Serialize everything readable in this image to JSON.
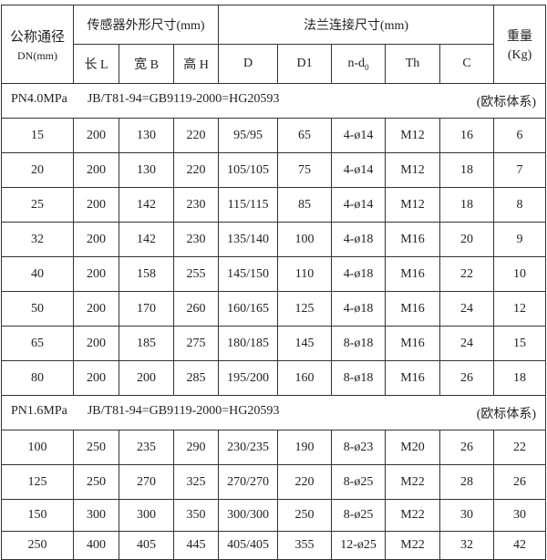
{
  "header": {
    "nominal_diameter": "公称通径",
    "nominal_diameter_unit": "DN(mm)",
    "sensor_dims": "传感器外形尺寸(mm)",
    "flange_dims": "法兰连接尺寸(mm)",
    "weight": "重量",
    "weight_unit": "(Kg)",
    "columns": [
      "长 L",
      "宽 B",
      "高 H",
      "D",
      "D1",
      "n-d",
      "Th",
      "C"
    ],
    "nd_subscript": "0"
  },
  "sections": [
    {
      "pressure": "PN4.0MPa",
      "standard": "JB/T81-94=GB9119-2000=HG20593",
      "system": "(欧标体系)",
      "rows": [
        [
          "15",
          "200",
          "130",
          "220",
          "95/95",
          "65",
          "4-ø14",
          "M12",
          "16",
          "6"
        ],
        [
          "20",
          "200",
          "130",
          "220",
          "105/105",
          "75",
          "4-ø14",
          "M12",
          "18",
          "7"
        ],
        [
          "25",
          "200",
          "142",
          "230",
          "115/115",
          "85",
          "4-ø14",
          "M12",
          "18",
          "8"
        ],
        [
          "32",
          "200",
          "142",
          "230",
          "135/140",
          "100",
          "4-ø18",
          "M16",
          "20",
          "9"
        ],
        [
          "40",
          "200",
          "158",
          "255",
          "145/150",
          "110",
          "4-ø18",
          "M16",
          "22",
          "10"
        ],
        [
          "50",
          "200",
          "170",
          "260",
          "160/165",
          "125",
          "4-ø18",
          "M16",
          "24",
          "12"
        ],
        [
          "65",
          "200",
          "185",
          "275",
          "180/185",
          "145",
          "8-ø18",
          "M16",
          "24",
          "15"
        ],
        [
          "80",
          "200",
          "200",
          "285",
          "195/200",
          "160",
          "8-ø18",
          "M16",
          "26",
          "18"
        ]
      ]
    },
    {
      "pressure": "PN1.6MPa",
      "standard": "JB/T81-94=GB9119-2000=HG20593",
      "system": "(欧标体系)",
      "rows": [
        [
          "100",
          "250",
          "235",
          "290",
          "230/235",
          "190",
          "8-ø23",
          "M20",
          "26",
          "22"
        ],
        [
          "125",
          "250",
          "270",
          "325",
          "270/270",
          "220",
          "8-ø25",
          "M22",
          "28",
          "26"
        ],
        [
          "150",
          "300",
          "300",
          "350",
          "300/300",
          "250",
          "8-ø25",
          "M22",
          "30",
          "30"
        ],
        [
          "250",
          "400",
          "405",
          "445",
          "405/405",
          "355",
          "12-ø25",
          "M22",
          "32",
          "42"
        ]
      ]
    }
  ]
}
